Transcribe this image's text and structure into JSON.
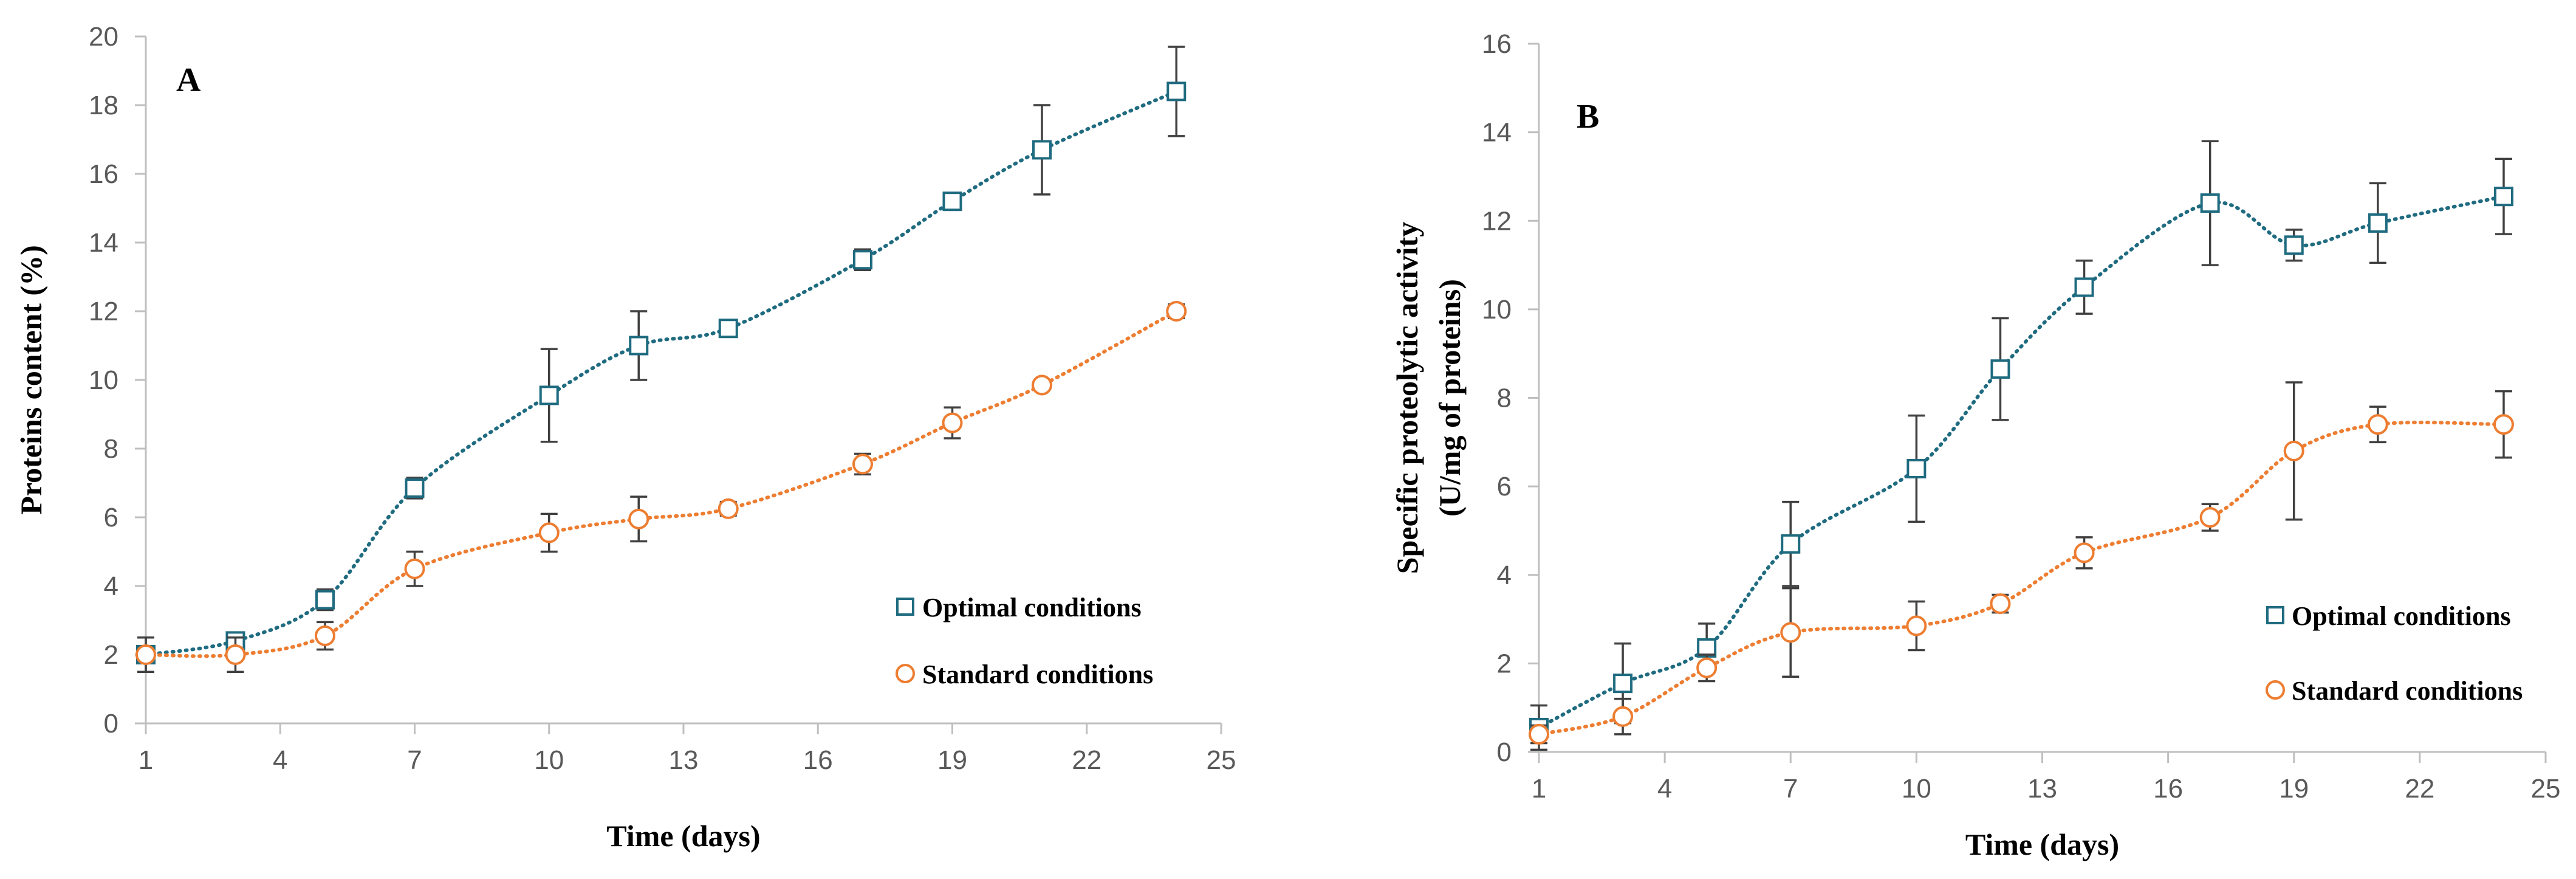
{
  "colors": {
    "optimal": "#1F6B80",
    "standard": "#ED7D31",
    "axis": "#BFBFBF",
    "error": "#404040"
  },
  "chart_data": [
    {
      "type": "line",
      "panel": "A",
      "xlabel": "Time (days)",
      "ylabel": "Proteins content (%)",
      "xlim": [
        1,
        25
      ],
      "ylim": [
        0,
        20
      ],
      "xticks": [
        1,
        4,
        7,
        10,
        13,
        16,
        19,
        22,
        25
      ],
      "yticks": [
        0,
        2,
        4,
        6,
        8,
        10,
        12,
        14,
        16,
        18,
        20
      ],
      "legend_position": "lower-right",
      "series": [
        {
          "name": "Optimal conditions",
          "marker": "square",
          "x": [
            1,
            3,
            5,
            7,
            10,
            12,
            14,
            17,
            19,
            21,
            24
          ],
          "y": [
            2.0,
            2.4,
            3.6,
            6.85,
            9.55,
            11.0,
            11.5,
            13.5,
            15.2,
            16.7,
            18.4
          ],
          "err": [
            0.5,
            0.2,
            0.3,
            0.3,
            1.35,
            1.0,
            0.2,
            0.3,
            0.2,
            1.3,
            1.3
          ]
        },
        {
          "name": "Standard conditions",
          "marker": "circle",
          "x": [
            1,
            3,
            5,
            7,
            10,
            12,
            14,
            17,
            19,
            21,
            24
          ],
          "y": [
            2.0,
            2.0,
            2.55,
            4.5,
            5.55,
            5.95,
            6.25,
            7.55,
            8.75,
            9.85,
            12.0
          ],
          "err": [
            0.5,
            0.5,
            0.4,
            0.5,
            0.55,
            0.65,
            0.2,
            0.3,
            0.45,
            0.1,
            0.2
          ]
        }
      ]
    },
    {
      "type": "line",
      "panel": "B",
      "xlabel": "Time (days)",
      "ylabel": [
        "Specific proteolytic activity",
        "(U/mg of proteins)"
      ],
      "xlim": [
        1,
        25
      ],
      "ylim": [
        0,
        16
      ],
      "xticks": [
        1,
        4,
        7,
        10,
        13,
        16,
        19,
        22,
        25
      ],
      "yticks": [
        0,
        2,
        4,
        6,
        8,
        10,
        12,
        14,
        16
      ],
      "legend_position": "lower-right",
      "series": [
        {
          "name": "Optimal conditions",
          "marker": "square",
          "x": [
            1,
            3,
            5,
            7,
            10,
            12,
            14,
            17,
            19,
            21,
            24
          ],
          "y": [
            0.55,
            1.55,
            2.35,
            4.7,
            6.4,
            8.65,
            10.5,
            12.4,
            11.45,
            11.95,
            12.55
          ],
          "err": [
            0.5,
            0.9,
            0.55,
            0.95,
            1.2,
            1.15,
            0.6,
            1.4,
            0.35,
            0.9,
            0.85
          ]
        },
        {
          "name": "Standard conditions",
          "marker": "circle",
          "x": [
            1,
            3,
            5,
            7,
            10,
            12,
            14,
            17,
            19,
            21,
            24
          ],
          "y": [
            0.4,
            0.8,
            1.9,
            2.7,
            2.85,
            3.35,
            4.5,
            5.3,
            6.8,
            7.4,
            7.4
          ],
          "err": [
            0.2,
            0.4,
            0.3,
            1.0,
            0.55,
            0.2,
            0.35,
            0.3,
            1.55,
            0.4,
            0.75
          ]
        }
      ]
    }
  ]
}
